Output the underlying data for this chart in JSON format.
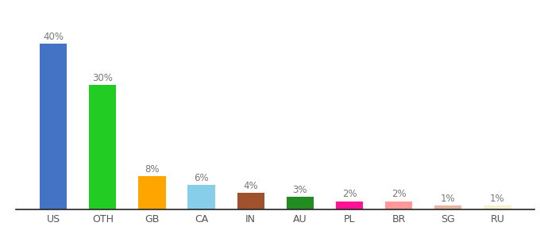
{
  "categories": [
    "US",
    "OTH",
    "GB",
    "CA",
    "IN",
    "AU",
    "PL",
    "BR",
    "SG",
    "RU"
  ],
  "values": [
    40,
    30,
    8,
    6,
    4,
    3,
    2,
    2,
    1,
    1
  ],
  "bar_colors": [
    "#4472c4",
    "#22cc22",
    "#ffa500",
    "#87ceeb",
    "#a0522d",
    "#228b22",
    "#ff1493",
    "#ff9999",
    "#e8b4a0",
    "#f5f0d0"
  ],
  "labels": [
    "40%",
    "30%",
    "8%",
    "6%",
    "4%",
    "3%",
    "2%",
    "2%",
    "1%",
    "1%"
  ],
  "background_color": "#ffffff",
  "ylim": [
    0,
    46
  ],
  "bar_width": 0.55,
  "label_color": "#777777",
  "label_fontsize": 8.5,
  "tick_fontsize": 9
}
